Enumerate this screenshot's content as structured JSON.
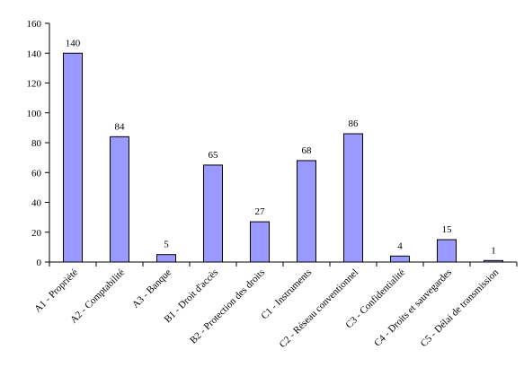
{
  "chart_data": {
    "type": "bar",
    "title": "",
    "xlabel": "",
    "ylabel": "",
    "ylim": [
      0,
      160
    ],
    "yticks": [
      0,
      20,
      40,
      60,
      80,
      100,
      120,
      140,
      160
    ],
    "grid": false,
    "legend": "none",
    "bar_color": "#9999ff",
    "categories": [
      "A1 - Propriété",
      "A2 - Comptabilité",
      "A3 - Banque",
      "B1 - Droit d'accès",
      "B2 - Protection des droits",
      "C1 - Instruments",
      "C2 - Réseau conventionnel",
      "C3 - Confidentialité",
      "C4 - Droits et sauvegardes",
      "C5 - Délai de transmission"
    ],
    "values": [
      140,
      84,
      5,
      65,
      27,
      68,
      86,
      4,
      15,
      1
    ]
  }
}
